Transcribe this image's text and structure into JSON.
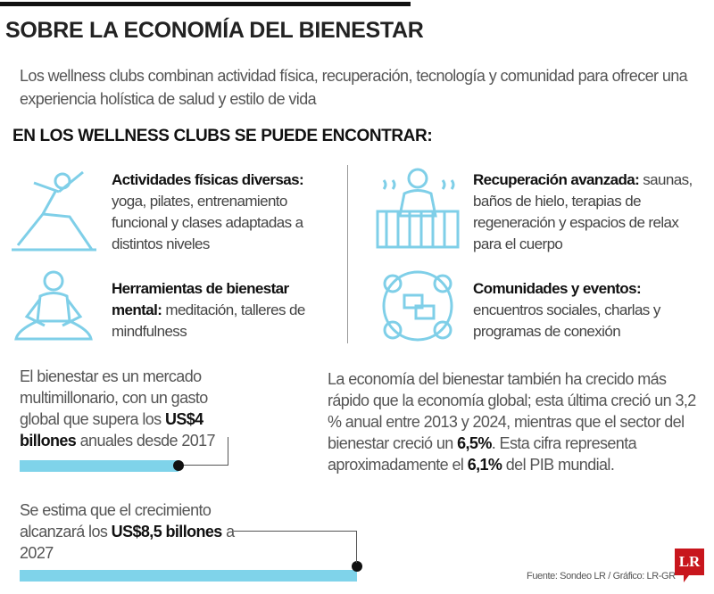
{
  "title": "SOBRE LA ECONOMÍA DEL BIENESTAR",
  "intro": "Los wellness clubs combinan actividad física, recuperación, tecnología y comunidad para ofrecer una experiencia holística de salud y estilo de vida",
  "subheading": "EN LOS WELLNESS CLUBS SE PUEDE ENCONTRAR:",
  "features": [
    {
      "title": "Actividades físicas diversas:",
      "text": "yoga, pilates, entrenamiento funcional y clases adaptadas a distintos niveles",
      "icon": "yoga-pose-icon"
    },
    {
      "title": "Recuperación avanzada:",
      "text": "saunas, baños de hielo, terapias de regeneración y espacios de relax para el cuerpo",
      "icon": "sauna-person-icon"
    },
    {
      "title": "Herramientas de bienestar mental:",
      "text": "meditación, talleres de mindfulness",
      "icon": "meditation-icon"
    },
    {
      "title": "Comunidades y eventos:",
      "text": "encuentros sociales, charlas y programas de conexión",
      "icon": "community-chat-icon"
    }
  ],
  "stats": [
    {
      "pre": "El bienestar es un mercado multimillonario, con un gasto global que supera los ",
      "bold": "US$4 billones",
      "post": " anuales desde 2017",
      "value_trillion_usd": 4
    },
    {
      "pre": "Se estima que el crecimiento alcanzará los ",
      "bold": "US$8,5 billones",
      "post": " a 2027",
      "value_trillion_usd": 8.5
    }
  ],
  "growth": {
    "p1": "La economía del bienestar también ha crecido más rápido que la economía global; esta última creció un 3,2 % anual entre 2013 y 2024, mientras que el sector del bienestar creció un ",
    "b1": "6,5%",
    "p2": ". Esta cifra representa aproximadamente el ",
    "b2": "6,1%",
    "p3": " del PIB mundial."
  },
  "source": "Fuente: Sondeo LR / Gráfico: LR-GR",
  "logo": "LR",
  "colors": {
    "accent": "#7fd3ea",
    "logo": "#c8161d"
  }
}
